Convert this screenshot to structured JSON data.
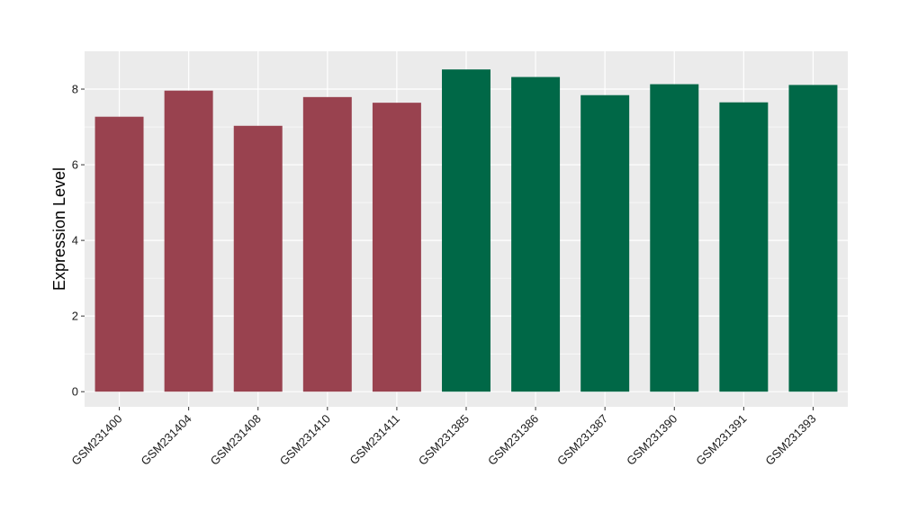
{
  "chart_data": {
    "type": "bar",
    "title": "",
    "xlabel": "",
    "ylabel": "Expression Level",
    "ylim": [
      -0.4,
      9.0
    ],
    "yticks": [
      0,
      2,
      4,
      6,
      8
    ],
    "grid": true,
    "categories": [
      "GSM231400",
      "GSM231404",
      "GSM231408",
      "GSM231410",
      "GSM231411",
      "GSM231385",
      "GSM231386",
      "GSM231387",
      "GSM231390",
      "GSM231391",
      "GSM231393"
    ],
    "values": [
      7.27,
      7.96,
      7.03,
      7.79,
      7.64,
      8.52,
      8.32,
      7.84,
      8.13,
      7.65,
      8.11
    ],
    "bar_colors": [
      "#99424f",
      "#99424f",
      "#99424f",
      "#99424f",
      "#99424f",
      "#006847",
      "#006847",
      "#006847",
      "#006847",
      "#006847",
      "#006847"
    ],
    "panel_background": "#ebebeb",
    "grid_color": "#ffffff"
  }
}
